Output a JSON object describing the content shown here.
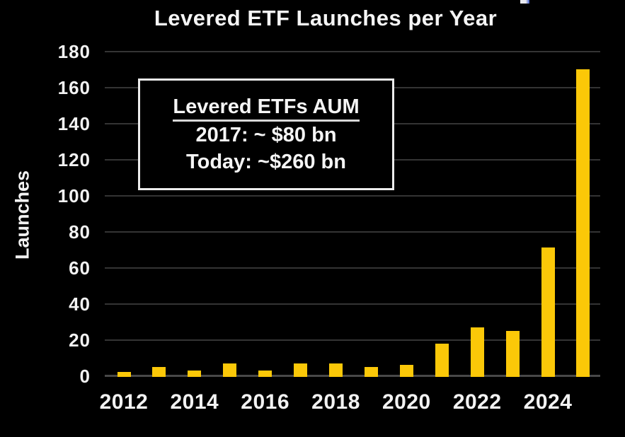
{
  "title": "Levered ETF Launches per Year",
  "y_axis_title": "Launches",
  "annotation": {
    "heading": "Levered ETFs AUM",
    "line1": "2017: ~ $80 bn",
    "line2": "Today: ~$260 bn"
  },
  "chart_data": {
    "type": "bar",
    "title": "Levered ETF Launches per Year",
    "xlabel": "",
    "ylabel": "Launches",
    "categories": [
      2012,
      2013,
      2014,
      2015,
      2016,
      2017,
      2018,
      2019,
      2020,
      2021,
      2022,
      2023,
      2024,
      2025
    ],
    "values": [
      2,
      5,
      3,
      7,
      3,
      7,
      7,
      5,
      6,
      18,
      27,
      25,
      71,
      170
    ],
    "ylim": [
      0,
      180
    ],
    "ytick_step": 20,
    "ytick_labels": [
      "0",
      "20",
      "40",
      "60",
      "80",
      "100",
      "120",
      "140",
      "160",
      "180"
    ],
    "xtick_labels": [
      "2012",
      "2014",
      "2016",
      "2018",
      "2020",
      "2022",
      "2024"
    ],
    "grid": true,
    "legend": "none",
    "bar_color": "#FBC808",
    "background_color": "#000000",
    "annotation_box": [
      "Levered ETFs AUM",
      "2017: ~ $80 bn",
      "Today: ~$260 bn"
    ]
  },
  "colors": {
    "bar": "#FBC808",
    "text": "#F2F2F2",
    "gridline": "#343434",
    "baseline": "#484848",
    "annotation_border": "#ECECEC",
    "background": "#000000"
  }
}
